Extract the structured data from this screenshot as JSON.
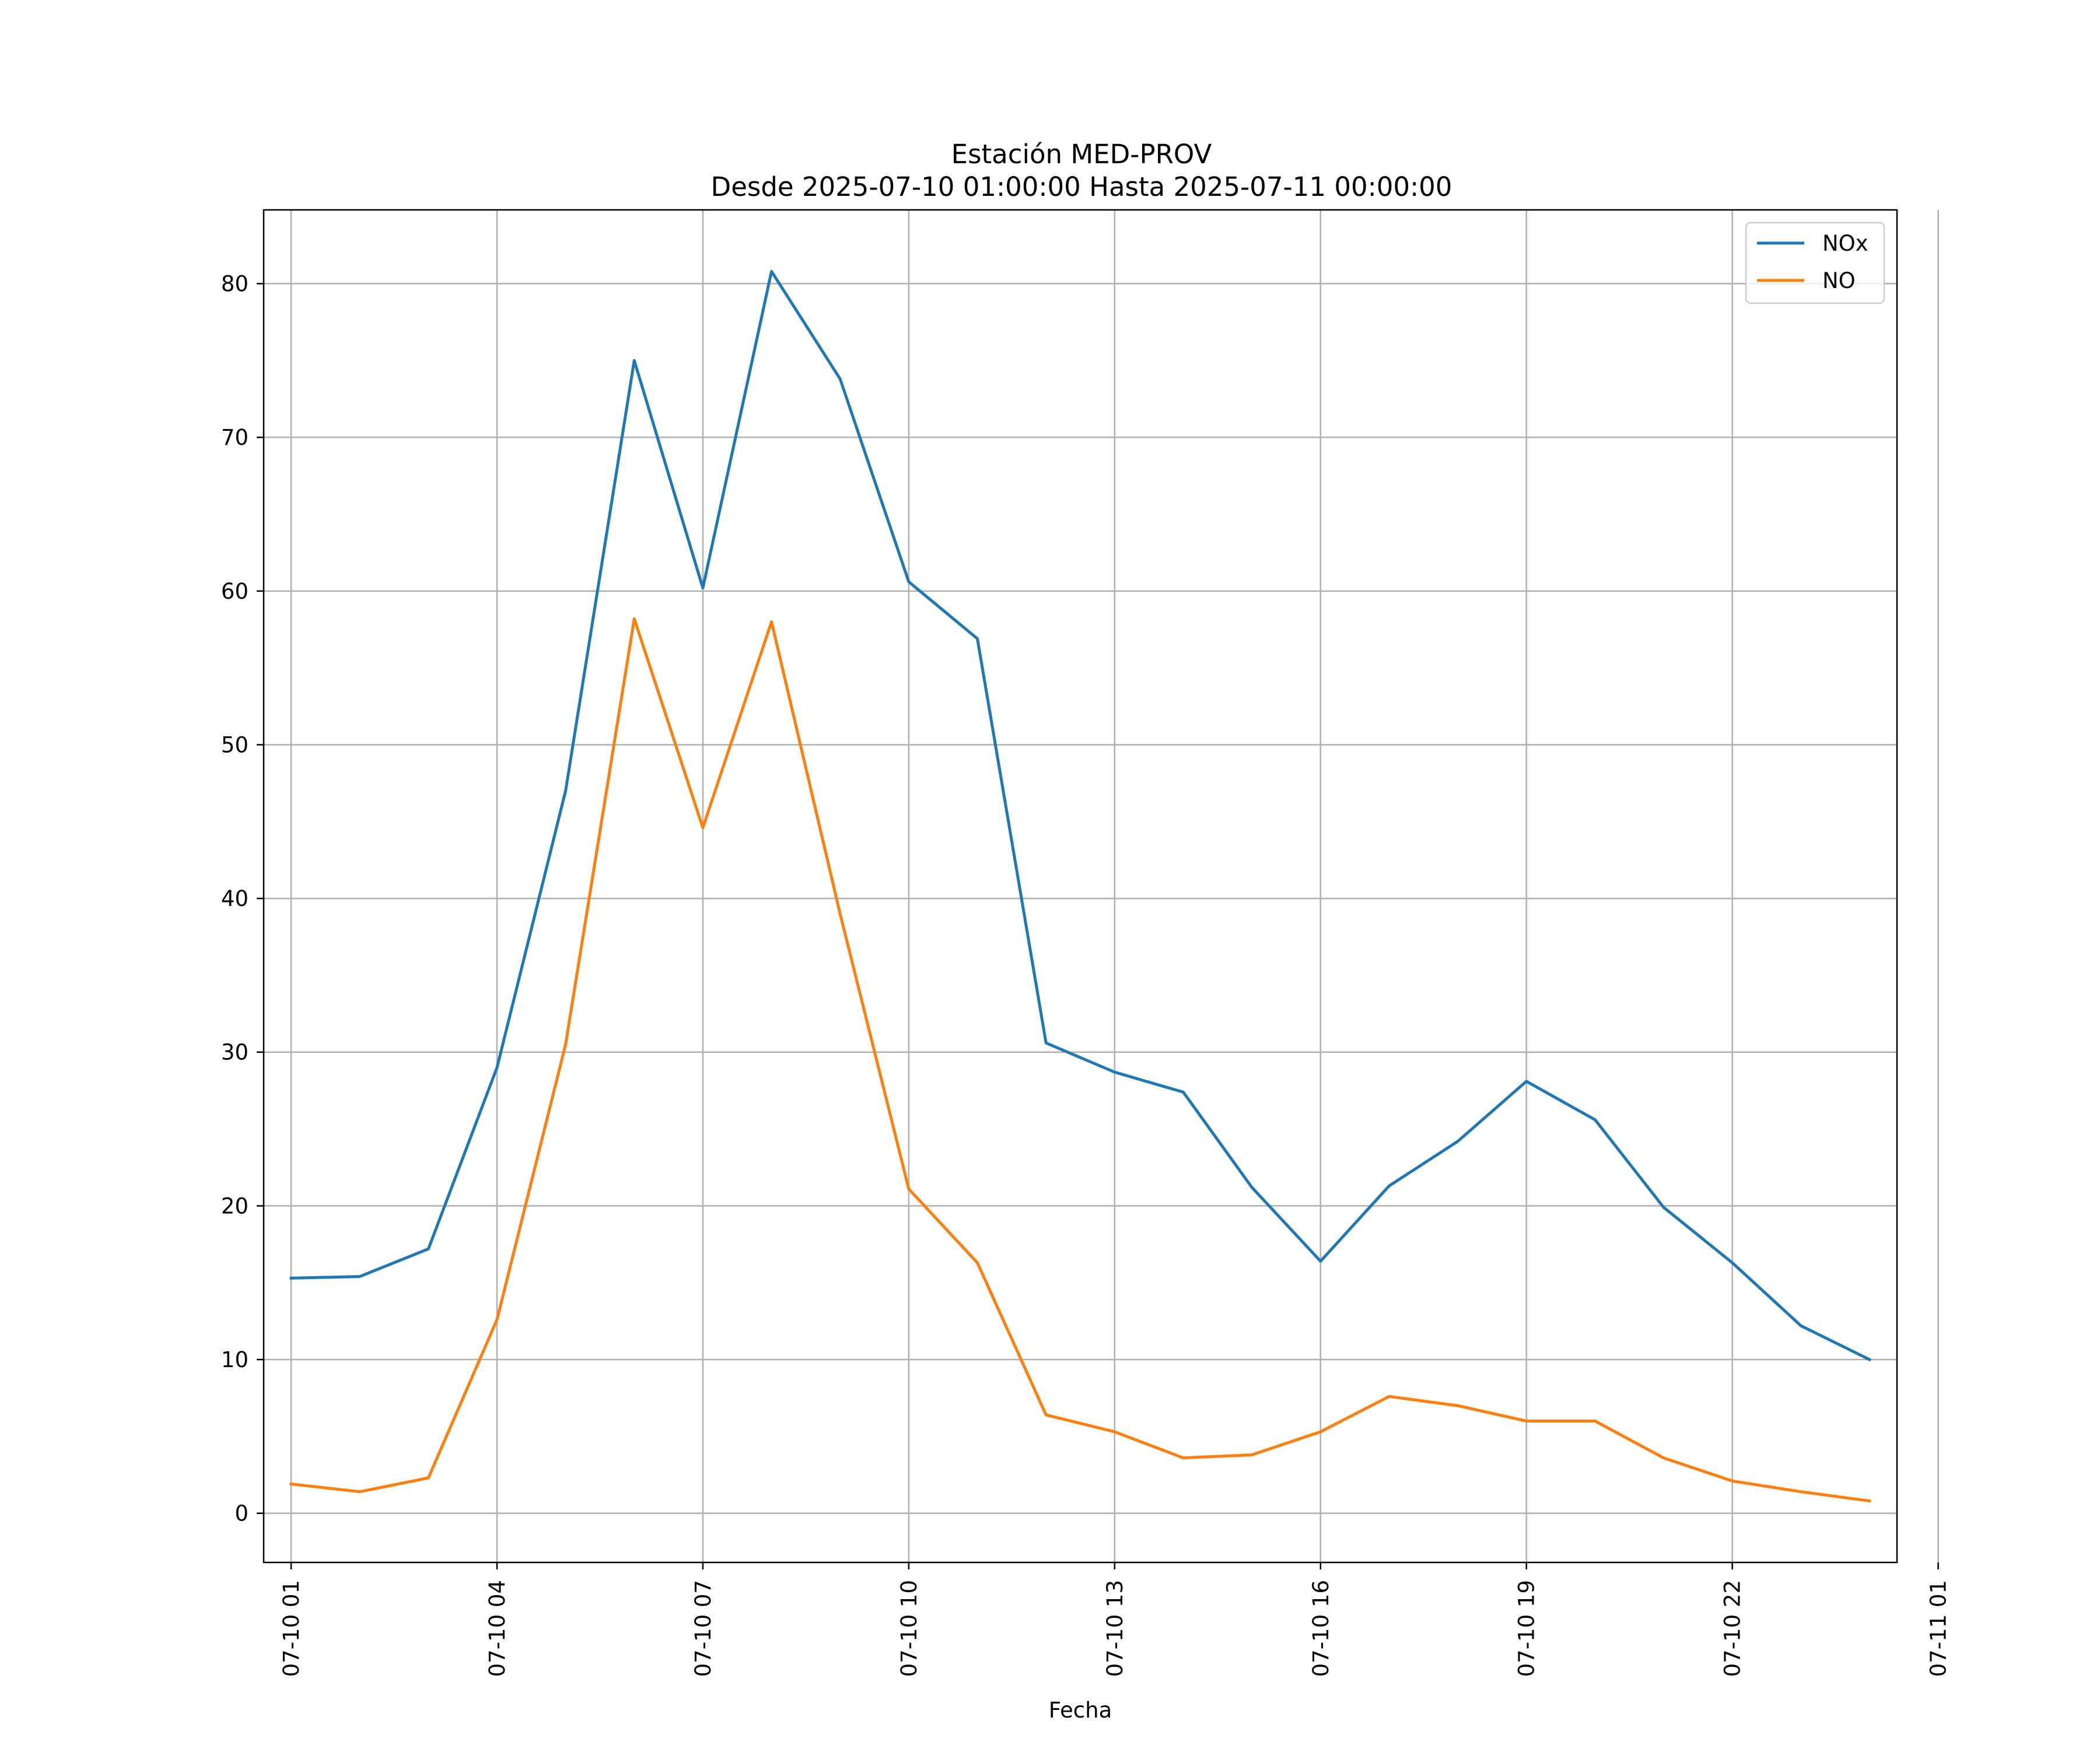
{
  "chart_data": {
    "type": "line",
    "title_line1": "Estación MED-PROV",
    "title_line2": "Desde 2025-07-10 01:00:00 Hasta 2025-07-11 00:00:00",
    "xlabel": "Fecha",
    "ylabel": "",
    "x_range": [
      "2025-07-10 00:36",
      "2025-07-11 00:24"
    ],
    "ylim": [
      -3.2,
      84.8
    ],
    "y_ticks": [
      0,
      10,
      20,
      30,
      40,
      50,
      60,
      70,
      80
    ],
    "x_ticks": [
      {
        "hour": 1,
        "label": "07-10 01"
      },
      {
        "hour": 4,
        "label": "07-10 04"
      },
      {
        "hour": 7,
        "label": "07-10 07"
      },
      {
        "hour": 10,
        "label": "07-10 10"
      },
      {
        "hour": 13,
        "label": "07-10 13"
      },
      {
        "hour": 16,
        "label": "07-10 16"
      },
      {
        "hour": 19,
        "label": "07-10 19"
      },
      {
        "hour": 22,
        "label": "07-10 22"
      },
      {
        "hour": 25,
        "label": "07-11 01"
      }
    ],
    "grid": true,
    "legend_position": "top-right",
    "x_hours": [
      1,
      2,
      3,
      4,
      5,
      6,
      7,
      8,
      9,
      10,
      11,
      12,
      13,
      14,
      15,
      16,
      17,
      18,
      19,
      20,
      21,
      22,
      23,
      24
    ],
    "series": [
      {
        "name": "NOx",
        "color": "#1f77b4",
        "values": [
          15.3,
          15.4,
          17.2,
          29.0,
          47.0,
          75.0,
          60.2,
          80.8,
          73.8,
          60.6,
          56.9,
          30.6,
          28.7,
          27.4,
          21.2,
          16.4,
          21.3,
          24.2,
          28.1,
          25.6,
          19.9,
          16.3,
          12.2,
          10.0
        ]
      },
      {
        "name": "NO",
        "color": "#ff7f0e",
        "values": [
          1.9,
          1.4,
          2.3,
          12.6,
          30.5,
          58.2,
          44.6,
          58.0,
          39.0,
          21.1,
          16.3,
          6.4,
          5.3,
          3.6,
          3.8,
          5.3,
          7.6,
          7.0,
          6.0,
          6.0,
          3.6,
          2.1,
          1.4,
          0.8
        ]
      }
    ]
  }
}
